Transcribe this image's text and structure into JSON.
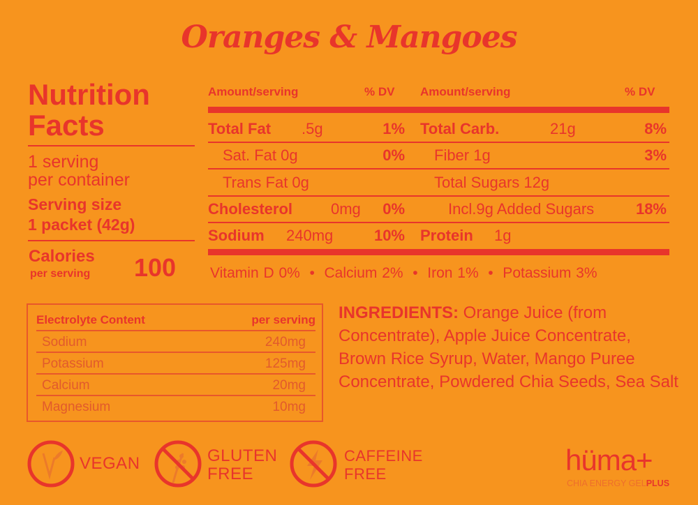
{
  "title": "Oranges & Mangoes",
  "left": {
    "heading": [
      "Nutrition",
      "Facts"
    ],
    "servings": [
      "1 serving",
      "per container"
    ],
    "serving_size": [
      "Serving size",
      "1 packet (42g)"
    ],
    "calories_label": "Calories",
    "per_serving": "per serving",
    "calories": "100"
  },
  "table": {
    "header": {
      "amount": "Amount/serving",
      "dv": "% DV"
    },
    "left_rows": [
      {
        "name": "Total Fat",
        "amount": ".5g",
        "dv": "1%",
        "bold": true
      },
      {
        "name": "Sat. Fat 0g",
        "amount": "",
        "dv": "0%",
        "bold": false
      },
      {
        "name": "Trans Fat 0g",
        "amount": "",
        "dv": "",
        "bold": false
      },
      {
        "name": "Cholesterol",
        "amount": "0mg",
        "dv": "0%",
        "bold": true
      },
      {
        "name": "Sodium",
        "amount": "240mg",
        "dv": "10%",
        "bold": true
      }
    ],
    "right_rows": [
      {
        "name": "Total Carb.",
        "amount": "21g",
        "dv": "8%",
        "bold": true
      },
      {
        "name": "Fiber 1g",
        "amount": "",
        "dv": "3%",
        "bold": false
      },
      {
        "name": "Total Sugars 12g",
        "amount": "",
        "dv": "",
        "bold": false
      },
      {
        "name": "Incl.9g Added Sugars",
        "amount": "",
        "dv": "18%",
        "bold": false
      },
      {
        "name": "Protein",
        "amount": "1g",
        "dv": "",
        "bold": true
      }
    ],
    "vitamins": "Vitamin D 0%  •  Calcium 2%  •  Iron 1%  •  Potassium 3%"
  },
  "electrolytes": {
    "header": "Electrolyte Content",
    "header_right": "per serving",
    "rows": [
      {
        "name": "Sodium",
        "value": "240mg"
      },
      {
        "name": "Potassium",
        "value": "125mg"
      },
      {
        "name": "Calcium",
        "value": "20mg"
      },
      {
        "name": "Magnesium",
        "value": "10mg"
      }
    ]
  },
  "ingredients": {
    "label": "INGREDIENTS:",
    "text": " Orange Juice (from Concentrate), Apple Juice Concentrate, Brown Rice Syrup, Water, Mango Puree Concentrate, Powdered Chia Seeds, Sea Salt"
  },
  "badges": {
    "vegan": "VEGAN",
    "gluten": [
      "GLUTEN",
      "FREE"
    ],
    "caffeine": [
      "CAFFEINE",
      "FREE"
    ]
  },
  "brand": {
    "logo": "hüma+",
    "tagline": "CHIA ENERGY GEL",
    "tagline_plus": "PLUS"
  },
  "colors": {
    "background": "#F7941E",
    "red": "#E8352B"
  }
}
